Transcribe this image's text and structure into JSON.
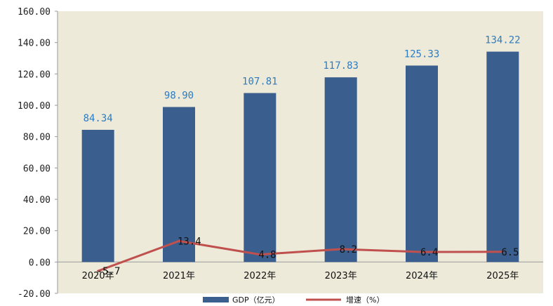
{
  "chart_data": {
    "type": "bar",
    "categories": [
      "2020年",
      "2021年",
      "2022年",
      "2023年",
      "2024年",
      "2025年"
    ],
    "series": [
      {
        "name": "GDP（亿元）",
        "type": "bar",
        "values": [
          84.34,
          98.9,
          107.81,
          117.83,
          125.33,
          134.22
        ],
        "labels": [
          "84.34",
          "98.90",
          "107.81",
          "117.83",
          "125.33",
          "134.22"
        ],
        "color": "#3a5f8f"
      },
      {
        "name": "增速（%）",
        "type": "line",
        "values": [
          -5.7,
          13.4,
          4.8,
          8.2,
          6.4,
          6.5
        ],
        "labels": [
          "-5.7",
          "13.4",
          "4.8",
          "8.2",
          "6.4",
          "6.5"
        ],
        "color": "#c0504d"
      }
    ],
    "yticks": [
      "-20.00",
      "0.00",
      "20.00",
      "40.00",
      "60.00",
      "80.00",
      "100.00",
      "120.00",
      "140.00",
      "160.00"
    ],
    "ylim": [
      -20,
      160
    ],
    "plot_background": "#edead9",
    "grid": false,
    "legend": "bottom"
  }
}
